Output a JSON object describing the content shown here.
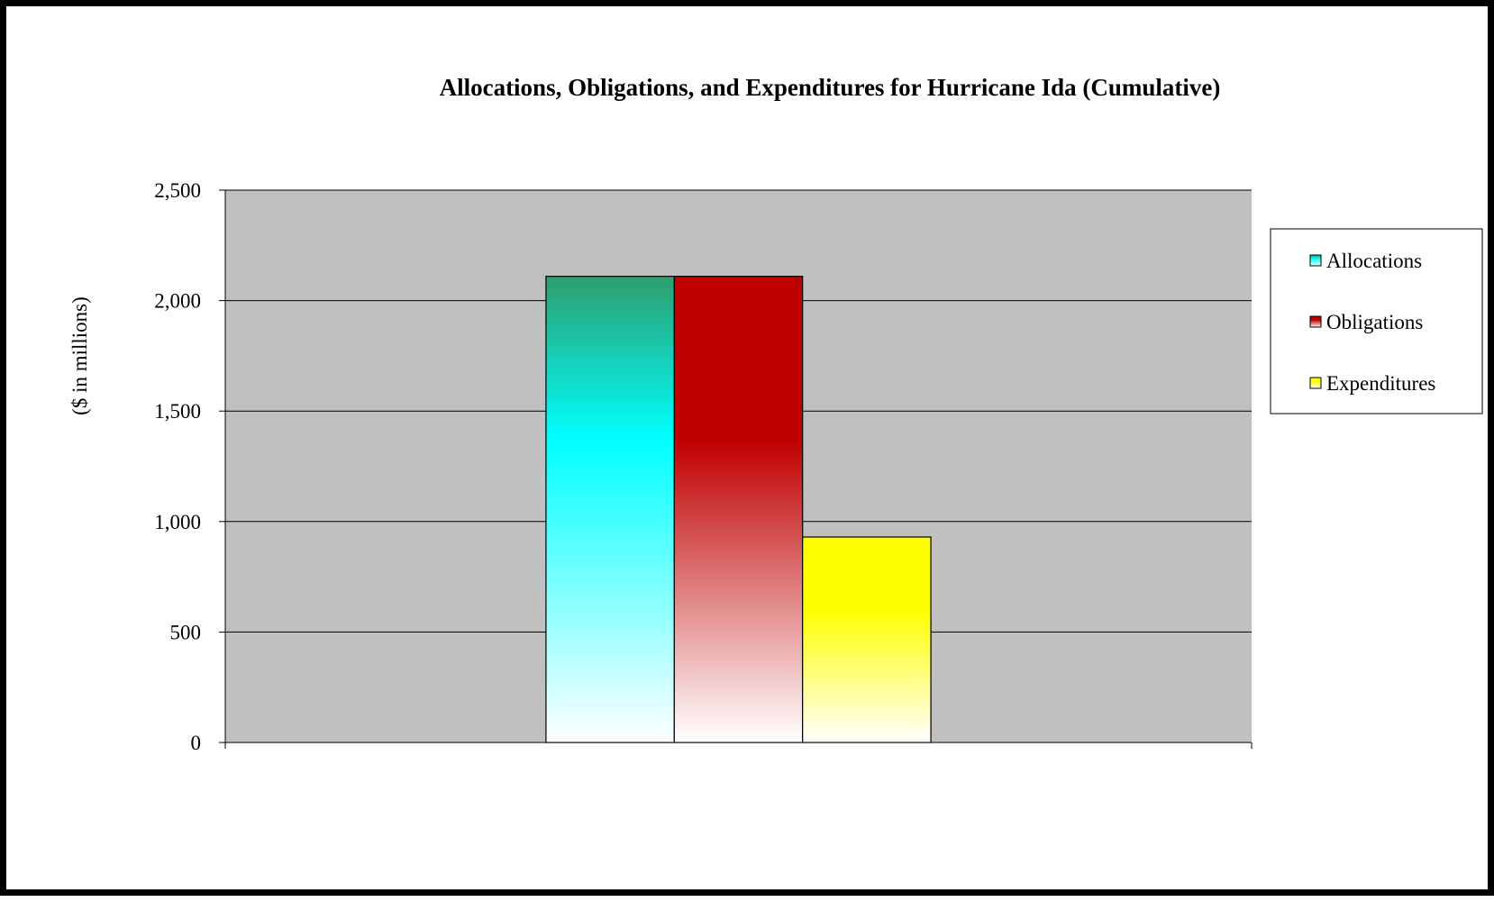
{
  "chart_data": {
    "type": "bar",
    "title": "Allocations, Obligations, and Expenditures for Hurricane Ida (Cumulative)",
    "xlabel": "",
    "ylabel": "($ in millions)",
    "categories": [
      ""
    ],
    "series": [
      {
        "name": "Allocations",
        "values": [
          2110
        ],
        "color": "#00ffff",
        "color_top": "#2e9e6e"
      },
      {
        "name": "Obligations",
        "values": [
          2110
        ],
        "color": "#c00000",
        "color_top": "#c00000"
      },
      {
        "name": "Expenditures",
        "values": [
          930
        ],
        "color": "#ffff00",
        "color_top": "#ffff00"
      }
    ],
    "ylim": [
      0,
      2500
    ],
    "yticks": [
      0,
      500,
      1000,
      1500,
      2000,
      2500
    ],
    "ytick_labels": [
      "0",
      "500",
      "1,000",
      "1,500",
      "2,000",
      "2,500"
    ],
    "grid": true,
    "plot_background": "#c0c0c0",
    "legend_position": "right"
  }
}
